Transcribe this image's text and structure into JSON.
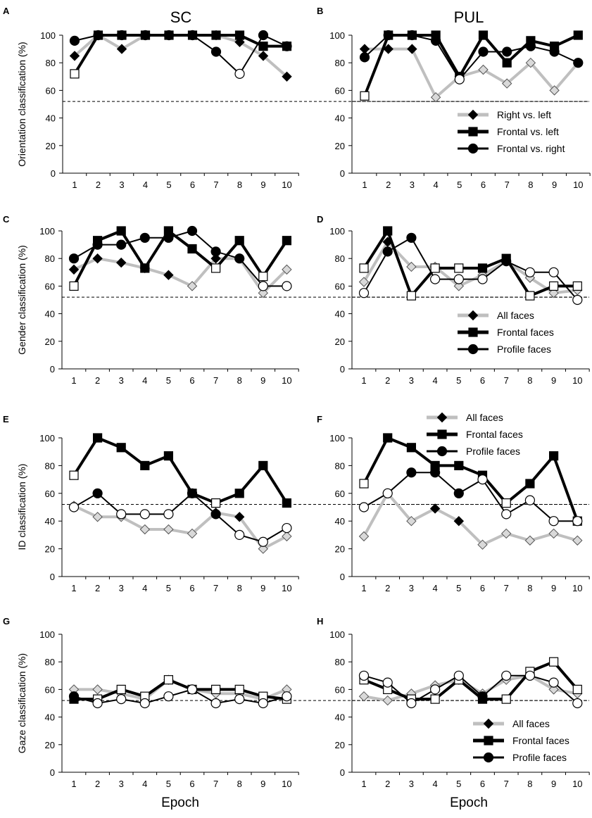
{
  "columns": [
    "SC",
    "PUL"
  ],
  "xlabel": "Epoch",
  "epochs": [
    1,
    2,
    3,
    4,
    5,
    6,
    7,
    8,
    9,
    10
  ],
  "chance_level": 52,
  "colors": {
    "gray_series": "#bfbfbf",
    "dark": "#000000",
    "hollow_fill": "#ffffff",
    "gray_marker_fill": "#d9d9d9"
  },
  "chart_data": [
    {
      "type": "line",
      "panel": "A",
      "column": "SC",
      "ylabel": "Orientation classification (%)",
      "ylim": [
        0,
        100
      ],
      "yticks": [
        0,
        20,
        40,
        60,
        80,
        100
      ],
      "x": [
        1,
        2,
        3,
        4,
        5,
        6,
        7,
        8,
        9,
        10
      ],
      "series": [
        {
          "name": "Right vs. left",
          "style": "gray-diamond",
          "values": [
            85,
            100,
            90,
            100,
            100,
            100,
            100,
            95,
            85,
            70
          ],
          "hollow": []
        },
        {
          "name": "Frontal vs. left",
          "style": "black-square",
          "values": [
            72,
            100,
            100,
            100,
            100,
            100,
            100,
            100,
            92,
            92
          ],
          "hollow": [
            0
          ]
        },
        {
          "name": "Frontal vs. right",
          "style": "black-circle",
          "values": [
            96,
            100,
            100,
            100,
            100,
            100,
            88,
            72,
            100,
            92
          ],
          "hollow": [
            7
          ]
        }
      ]
    },
    {
      "type": "line",
      "panel": "B",
      "column": "PUL",
      "ylabel": "",
      "ylim": [
        0,
        100
      ],
      "yticks": [
        0,
        20,
        40,
        60,
        80,
        100
      ],
      "x": [
        1,
        2,
        3,
        4,
        5,
        6,
        7,
        8,
        9,
        10
      ],
      "series": [
        {
          "name": "Right vs. left",
          "style": "gray-diamond",
          "values": [
            90,
            90,
            90,
            55,
            70,
            75,
            65,
            80,
            60,
            80
          ],
          "hollow": [
            3,
            5,
            6,
            7,
            8,
            9
          ]
        },
        {
          "name": "Frontal vs. left",
          "style": "black-square",
          "values": [
            56,
            100,
            100,
            100,
            70,
            100,
            80,
            96,
            92,
            100
          ],
          "hollow": [
            0
          ]
        },
        {
          "name": "Frontal vs. right",
          "style": "black-circle",
          "values": [
            84,
            100,
            100,
            96,
            68,
            88,
            88,
            92,
            88,
            80
          ],
          "hollow": [
            4
          ]
        }
      ],
      "legend": {
        "position": "bottom-right",
        "entries": [
          "Right vs. left",
          "Frontal vs. left",
          "Frontal vs. right"
        ]
      }
    },
    {
      "type": "line",
      "panel": "C",
      "column": "SC",
      "ylabel": "Gender classification (%)",
      "ylim": [
        0,
        100
      ],
      "yticks": [
        0,
        20,
        40,
        60,
        80,
        100
      ],
      "x": [
        1,
        2,
        3,
        4,
        5,
        6,
        7,
        8,
        9,
        10
      ],
      "series": [
        {
          "name": "All faces",
          "style": "gray-diamond",
          "values": [
            72,
            80,
            77,
            73,
            68,
            60,
            80,
            80,
            55,
            72
          ],
          "hollow": [
            5,
            8,
            9
          ]
        },
        {
          "name": "Frontal faces",
          "style": "black-square",
          "values": [
            60,
            93,
            100,
            73,
            100,
            87,
            73,
            93,
            67,
            93
          ],
          "hollow": [
            0,
            6,
            8
          ]
        },
        {
          "name": "Profile faces",
          "style": "black-circle",
          "values": [
            80,
            90,
            90,
            95,
            95,
            100,
            85,
            80,
            60,
            60
          ],
          "hollow": [
            8,
            9
          ]
        }
      ]
    },
    {
      "type": "line",
      "panel": "D",
      "column": "PUL",
      "ylabel": "",
      "ylim": [
        0,
        100
      ],
      "yticks": [
        0,
        20,
        40,
        60,
        80,
        100
      ],
      "x": [
        1,
        2,
        3,
        4,
        5,
        6,
        7,
        8,
        9,
        10
      ],
      "series": [
        {
          "name": "All faces",
          "style": "gray-diamond",
          "values": [
            63,
            92,
            74,
            74,
            60,
            68,
            78,
            66,
            55,
            57
          ],
          "hollow": [
            0,
            2,
            3,
            4,
            5,
            6,
            7,
            8,
            9
          ]
        },
        {
          "name": "Frontal faces",
          "style": "black-square",
          "values": [
            73,
            100,
            53,
            73,
            73,
            73,
            80,
            53,
            60,
            60
          ],
          "hollow": [
            0,
            2,
            3,
            4,
            7,
            8,
            9
          ]
        },
        {
          "name": "Profile faces",
          "style": "black-circle",
          "values": [
            55,
            85,
            95,
            65,
            65,
            65,
            78,
            70,
            70,
            50
          ],
          "hollow": [
            0,
            3,
            4,
            5,
            7,
            8,
            9
          ]
        }
      ],
      "legend": {
        "position": "bottom-right",
        "entries": [
          "All faces",
          "Frontal faces",
          "Profile faces"
        ]
      }
    },
    {
      "type": "line",
      "panel": "E",
      "column": "SC",
      "ylabel": "ID classification (%)",
      "ylim": [
        0,
        100
      ],
      "yticks": [
        0,
        20,
        40,
        60,
        80,
        100
      ],
      "x": [
        1,
        2,
        3,
        4,
        5,
        6,
        7,
        8,
        9,
        10
      ],
      "series": [
        {
          "name": "All faces",
          "style": "gray-diamond",
          "values": [
            51,
            43,
            43,
            34,
            34,
            31,
            46,
            43,
            20,
            29
          ],
          "hollow": [
            0,
            1,
            2,
            3,
            4,
            5,
            8,
            9
          ]
        },
        {
          "name": "Frontal faces",
          "style": "black-square",
          "values": [
            73,
            100,
            93,
            80,
            87,
            60,
            53,
            60,
            80,
            53
          ],
          "hollow": [
            0,
            6
          ]
        },
        {
          "name": "Profile faces",
          "style": "black-circle",
          "values": [
            50,
            60,
            45,
            45,
            45,
            60,
            45,
            30,
            25,
            35
          ],
          "hollow": [
            0,
            2,
            3,
            4,
            7,
            8,
            9
          ]
        }
      ],
      "legend": {
        "position": "top",
        "entries": [
          "All faces",
          "Frontal faces",
          "Profile faces"
        ]
      }
    },
    {
      "type": "line",
      "panel": "F",
      "column": "PUL",
      "ylabel": "",
      "ylim": [
        0,
        100
      ],
      "yticks": [
        0,
        20,
        40,
        60,
        80,
        100
      ],
      "x": [
        1,
        2,
        3,
        4,
        5,
        6,
        7,
        8,
        9,
        10
      ],
      "series": [
        {
          "name": "All faces",
          "style": "gray-diamond",
          "values": [
            29,
            60,
            40,
            49,
            40,
            23,
            31,
            26,
            31,
            26
          ],
          "hollow": [
            0,
            1,
            2,
            5,
            6,
            7,
            8,
            9
          ]
        },
        {
          "name": "Frontal faces",
          "style": "black-square",
          "values": [
            67,
            100,
            93,
            80,
            80,
            73,
            53,
            67,
            87,
            40
          ],
          "hollow": [
            0,
            6,
            9
          ]
        },
        {
          "name": "Profile faces",
          "style": "black-circle",
          "values": [
            50,
            60,
            75,
            75,
            60,
            70,
            45,
            55,
            40,
            40
          ],
          "hollow": [
            0,
            1,
            5,
            6,
            7,
            8,
            9
          ]
        }
      ]
    },
    {
      "type": "line",
      "panel": "G",
      "column": "SC",
      "ylabel": "Gaze classification (%)",
      "ylim": [
        0,
        100
      ],
      "yticks": [
        0,
        20,
        40,
        60,
        80,
        100
      ],
      "x": [
        1,
        2,
        3,
        4,
        5,
        6,
        7,
        8,
        9,
        10
      ],
      "series": [
        {
          "name": "All faces",
          "style": "gray-diamond",
          "values": [
            60,
            60,
            57,
            53,
            67,
            60,
            57,
            57,
            53,
            60
          ],
          "hollow": [
            0,
            1,
            2,
            3,
            4,
            5,
            6,
            7,
            8,
            9
          ]
        },
        {
          "name": "Frontal faces",
          "style": "black-square",
          "values": [
            53,
            53,
            60,
            55,
            67,
            60,
            60,
            60,
            55,
            53
          ],
          "hollow": [
            1,
            2,
            3,
            4,
            5,
            6,
            7,
            8,
            9
          ]
        },
        {
          "name": "Profile faces",
          "style": "black-circle",
          "values": [
            55,
            50,
            53,
            50,
            55,
            60,
            50,
            53,
            50,
            55
          ],
          "hollow": [
            1,
            2,
            3,
            4,
            5,
            6,
            7,
            8,
            9
          ]
        }
      ]
    },
    {
      "type": "line",
      "panel": "H",
      "column": "PUL",
      "ylabel": "",
      "ylim": [
        0,
        100
      ],
      "yticks": [
        0,
        20,
        40,
        60,
        80,
        100
      ],
      "x": [
        1,
        2,
        3,
        4,
        5,
        6,
        7,
        8,
        9,
        10
      ],
      "series": [
        {
          "name": "All faces",
          "style": "gray-diamond",
          "values": [
            55,
            52,
            57,
            63,
            67,
            57,
            67,
            70,
            60,
            57
          ],
          "hollow": [
            0,
            1,
            2,
            3,
            4,
            5,
            6,
            7,
            8,
            9
          ]
        },
        {
          "name": "Frontal faces",
          "style": "black-square",
          "values": [
            67,
            60,
            53,
            53,
            67,
            53,
            53,
            73,
            80,
            60
          ],
          "hollow": [
            0,
            1,
            2,
            3,
            4,
            6,
            7,
            8,
            9
          ]
        },
        {
          "name": "Profile faces",
          "style": "black-circle",
          "values": [
            70,
            65,
            50,
            60,
            70,
            55,
            70,
            70,
            65,
            50
          ],
          "hollow": [
            0,
            1,
            2,
            3,
            4,
            6,
            7,
            8,
            9
          ]
        }
      ],
      "legend": {
        "position": "bottom-right",
        "entries": [
          "All faces",
          "Frontal faces",
          "Profile faces"
        ]
      }
    }
  ]
}
